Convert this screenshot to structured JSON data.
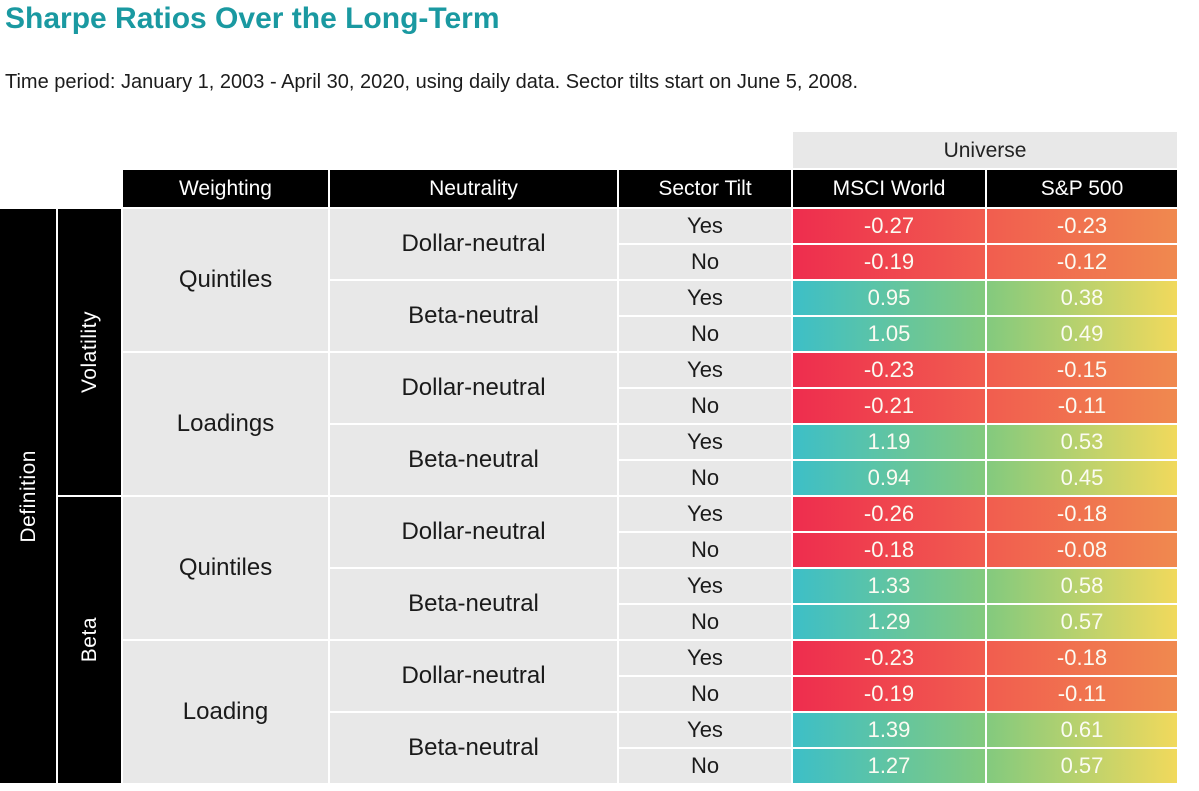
{
  "title": "Sharpe Ratios Over the Long-Term",
  "subtitle": "Time period: January 1, 2003 - April 30, 2020, using daily data. Sector tilts start on June 5, 2008.",
  "table": {
    "universe_label": "Universe",
    "definition_label": "Definition",
    "columns": [
      "Weighting",
      "Neutrality",
      "Sector Tilt",
      "MSCI World",
      "S&P 500"
    ]
  },
  "colors": {
    "title_text": "#1a99a1",
    "header_bg": "#000000",
    "header_text": "#ffffff",
    "body_cell_bg": "#e8e8e8",
    "heatmap_negative": [
      "#ee2d4e",
      "#f15d4f",
      "#f0894f"
    ],
    "heatmap_positive": [
      "#3dbfc7",
      "#83ca7e",
      "#f1d95c"
    ]
  },
  "chart_data": {
    "type": "heatmap",
    "title": "Sharpe Ratios Over the Long-Term",
    "subtitle": "Time period: January 1, 2003 - April 30, 2020, using daily data. Sector tilts start on June 5, 2008.",
    "value_columns": [
      "MSCI World",
      "S&P 500"
    ],
    "row_dimensions": [
      "Definition",
      "Weighting",
      "Neutrality",
      "Sector Tilt"
    ],
    "legend_position": "none",
    "rows": [
      {
        "definition": "Volatility",
        "weighting": "Quintiles",
        "neutrality": "Dollar-neutral",
        "sector_tilt": "Yes",
        "msci_world": -0.27,
        "sp500": -0.23
      },
      {
        "definition": "Volatility",
        "weighting": "Quintiles",
        "neutrality": "Dollar-neutral",
        "sector_tilt": "No",
        "msci_world": -0.19,
        "sp500": -0.12
      },
      {
        "definition": "Volatility",
        "weighting": "Quintiles",
        "neutrality": "Beta-neutral",
        "sector_tilt": "Yes",
        "msci_world": 0.95,
        "sp500": 0.38
      },
      {
        "definition": "Volatility",
        "weighting": "Quintiles",
        "neutrality": "Beta-neutral",
        "sector_tilt": "No",
        "msci_world": 1.05,
        "sp500": 0.49
      },
      {
        "definition": "Volatility",
        "weighting": "Loadings",
        "neutrality": "Dollar-neutral",
        "sector_tilt": "Yes",
        "msci_world": -0.23,
        "sp500": -0.15
      },
      {
        "definition": "Volatility",
        "weighting": "Loadings",
        "neutrality": "Dollar-neutral",
        "sector_tilt": "No",
        "msci_world": -0.21,
        "sp500": -0.11
      },
      {
        "definition": "Volatility",
        "weighting": "Loadings",
        "neutrality": "Beta-neutral",
        "sector_tilt": "Yes",
        "msci_world": 1.19,
        "sp500": 0.53
      },
      {
        "definition": "Volatility",
        "weighting": "Loadings",
        "neutrality": "Beta-neutral",
        "sector_tilt": "No",
        "msci_world": 0.94,
        "sp500": 0.45
      },
      {
        "definition": "Beta",
        "weighting": "Quintiles",
        "neutrality": "Dollar-neutral",
        "sector_tilt": "Yes",
        "msci_world": -0.26,
        "sp500": -0.18
      },
      {
        "definition": "Beta",
        "weighting": "Quintiles",
        "neutrality": "Dollar-neutral",
        "sector_tilt": "No",
        "msci_world": -0.18,
        "sp500": -0.08
      },
      {
        "definition": "Beta",
        "weighting": "Quintiles",
        "neutrality": "Beta-neutral",
        "sector_tilt": "Yes",
        "msci_world": 1.33,
        "sp500": 0.58
      },
      {
        "definition": "Beta",
        "weighting": "Quintiles",
        "neutrality": "Beta-neutral",
        "sector_tilt": "No",
        "msci_world": 1.29,
        "sp500": 0.57
      },
      {
        "definition": "Beta",
        "weighting": "Loading",
        "neutrality": "Dollar-neutral",
        "sector_tilt": "Yes",
        "msci_world": -0.23,
        "sp500": -0.18
      },
      {
        "definition": "Beta",
        "weighting": "Loading",
        "neutrality": "Dollar-neutral",
        "sector_tilt": "No",
        "msci_world": -0.19,
        "sp500": -0.11
      },
      {
        "definition": "Beta",
        "weighting": "Loading",
        "neutrality": "Beta-neutral",
        "sector_tilt": "Yes",
        "msci_world": 1.39,
        "sp500": 0.61
      },
      {
        "definition": "Beta",
        "weighting": "Loading",
        "neutrality": "Beta-neutral",
        "sector_tilt": "No",
        "msci_world": 1.27,
        "sp500": 0.57
      }
    ]
  }
}
